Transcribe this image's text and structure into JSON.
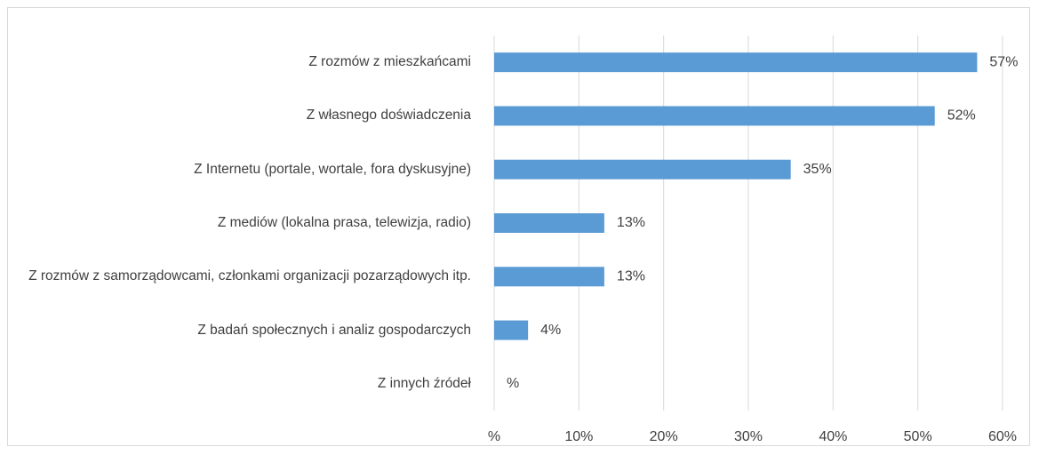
{
  "chart_data": {
    "type": "bar",
    "orientation": "horizontal",
    "categories": [
      "Z rozmów z mieszkańcami",
      "Z własnego doświadczenia",
      "Z Internetu (portale, wortale, fora dyskusyjne)",
      "Z mediów (lokalna prasa, telewizja, radio)",
      "Z rozmów z samorządowcami, członkami organizacji pozarządowych itp.",
      "Z badań społecznych i analiz gospodarczych",
      "Z innych źródeł"
    ],
    "values": [
      57,
      52,
      35,
      13,
      13,
      4,
      0
    ],
    "value_labels": [
      "57%",
      "52%",
      "35%",
      "13%",
      "13%",
      "4%",
      "%"
    ],
    "color": "#5b9bd5",
    "xlim": [
      0,
      60
    ],
    "xticks": [
      {
        "value": 0,
        "label": "%"
      },
      {
        "value": 10,
        "label": "10%"
      },
      {
        "value": 20,
        "label": "20%"
      },
      {
        "value": 30,
        "label": "30%"
      },
      {
        "value": 40,
        "label": "40%"
      },
      {
        "value": 50,
        "label": "50%"
      },
      {
        "value": 60,
        "label": "60%"
      }
    ],
    "grid": true
  }
}
